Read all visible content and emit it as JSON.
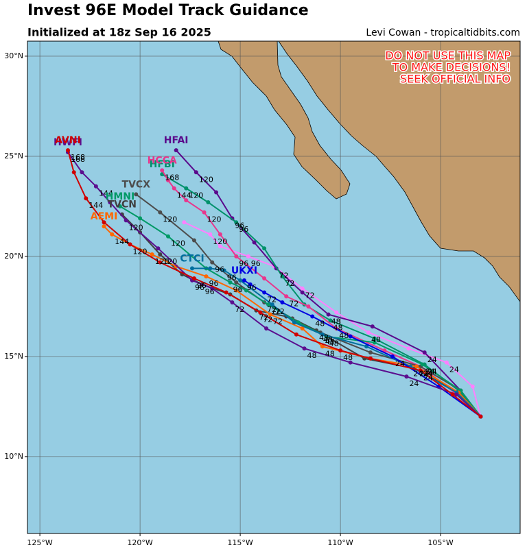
{
  "chart_data": {
    "type": "track-map",
    "title": "Invest 96E Model Track Guidance",
    "subtitle": "Initialized at 18z Sep 16 2025",
    "credit": "Levi Cowan - tropicaltidbits.com",
    "warning": [
      "DO NOT USE THIS MAP",
      "TO MAKE DECISIONS!",
      "SEEK OFFICIAL INFO"
    ],
    "xlim": [
      -125.62,
      -101.03
    ],
    "ylim": [
      6.16,
      30.75
    ],
    "xticks": [
      {
        "value": -125,
        "label": "125°W"
      },
      {
        "value": -120,
        "label": "120°W"
      },
      {
        "value": -115,
        "label": "115°W"
      },
      {
        "value": -110,
        "label": "110°W"
      },
      {
        "value": -105,
        "label": "105°W"
      }
    ],
    "yticks": [
      {
        "value": 10,
        "label": "10°N"
      },
      {
        "value": 15,
        "label": "15°N"
      },
      {
        "value": 20,
        "label": "20°N"
      },
      {
        "value": 25,
        "label": "25°N"
      },
      {
        "value": 30,
        "label": "30°N"
      }
    ],
    "grid": true,
    "series": [
      {
        "color": "#ff80ff",
        "lon": [
          -103.0,
          -103.4,
          -104.7,
          -106.6,
          -108.6,
          -110.2,
          -111.9,
          -113.3,
          -114.6,
          -116.0,
          -116.5,
          -117.8
        ],
        "lat": [
          12.0,
          13.5,
          14.7,
          15.4,
          16.2,
          17.2,
          18.4,
          19.5,
          20.0,
          20.5,
          21.1,
          21.7
        ],
        "hours": [
          null,
          null,
          24,
          null,
          48,
          null,
          72,
          null,
          96,
          null,
          120,
          null
        ]
      },
      {
        "name": "HFAI",
        "color": "#5a0a8c",
        "lon": [
          -103.0,
          -104.0,
          -105.8,
          -108.4,
          -110.6,
          -111.9,
          -113.2,
          -114.3,
          -115.4,
          -116.2,
          -117.2,
          -118.2
        ],
        "lat": [
          12.0,
          13.3,
          15.2,
          16.5,
          17.1,
          18.2,
          19.4,
          20.7,
          21.9,
          23.2,
          24.2,
          25.3
        ],
        "hours": [
          null,
          null,
          24,
          null,
          48,
          null,
          72,
          null,
          96,
          null,
          120,
          null
        ]
      },
      {
        "name": "HFBI",
        "color": "#00916b",
        "lon": [
          -103.0,
          -104.1,
          -105.8,
          -108.3,
          -110.5,
          -111.8,
          -112.9,
          -113.8,
          -115.2,
          -116.6,
          -117.7,
          -118.9
        ],
        "lat": [
          12.0,
          13.3,
          14.6,
          15.9,
          16.8,
          17.6,
          19.0,
          20.4,
          21.7,
          22.7,
          23.4,
          24.1
        ],
        "hours": [
          null,
          null,
          24,
          null,
          48,
          null,
          72,
          null,
          96,
          null,
          120,
          null
        ]
      },
      {
        "name": "HCCA",
        "color": "#e8368c",
        "lon": [
          -103.0,
          -104.3,
          -106.0,
          -107.8,
          -110.2,
          -111.6,
          -112.7,
          -113.8,
          -115.2,
          -116.0,
          -116.8,
          -117.7,
          -118.3,
          -118.6,
          -118.9
        ],
        "lat": [
          12.0,
          13.2,
          14.5,
          15.3,
          16.4,
          17.5,
          18.0,
          18.9,
          20.0,
          21.1,
          22.2,
          22.8,
          23.4,
          23.8,
          24.3
        ],
        "hours": [
          null,
          null,
          24,
          null,
          48,
          null,
          72,
          null,
          96,
          null,
          120,
          null,
          144,
          null,
          168
        ]
      },
      {
        "name": "TVCX",
        "color": "#4d4d4d",
        "lon": [
          -103.0,
          -104.0,
          -106.0,
          -108.5,
          -111.0,
          -112.4,
          -113.8,
          -115.2,
          -116.4,
          -117.3,
          -119.0,
          -120.2
        ],
        "lat": [
          12.0,
          13.3,
          14.5,
          15.2,
          16.2,
          16.9,
          17.7,
          18.7,
          19.7,
          20.8,
          22.2,
          23.1
        ],
        "hours": [
          null,
          null,
          24,
          null,
          48,
          null,
          72,
          null,
          96,
          null,
          120,
          null
        ]
      },
      {
        "name": "TVCN",
        "color": "#404040",
        "lon": [
          -103.0,
          -104.1,
          -106.3,
          -108.8,
          -111.2,
          -112.7,
          -114.2,
          -115.5,
          -116.9,
          -117.9,
          -119.0,
          -120.0,
          -120.9
        ],
        "lat": [
          12.0,
          13.2,
          14.4,
          14.9,
          16.3,
          17.0,
          17.3,
          18.1,
          18.6,
          19.1,
          20.1,
          21.2,
          22.1
        ],
        "hours": [
          null,
          null,
          null,
          null,
          48,
          null,
          72,
          null,
          96,
          null,
          120,
          null,
          null
        ]
      },
      {
        "name": "HMNI",
        "color": "#009966",
        "lon": [
          -103.0,
          -104.0,
          -105.9,
          -108.3,
          -110.7,
          -112.1,
          -113.6,
          -114.7,
          -115.5,
          -116.7,
          -118.6,
          -120.0,
          -121.0
        ],
        "lat": [
          12.0,
          13.3,
          14.6,
          15.7,
          16.0,
          16.7,
          17.6,
          18.3,
          18.7,
          19.4,
          21.0,
          21.9,
          22.5
        ],
        "hours": [
          null,
          null,
          24,
          null,
          48,
          null,
          72,
          null,
          96,
          null,
          120,
          null,
          null
        ]
      },
      {
        "name": "AEMI",
        "color": "#ff6600",
        "lon": [
          -103.0,
          -104.1,
          -106.2,
          -108.5,
          -110.9,
          -111.9,
          -113.5,
          -115.2,
          -116.7,
          -118.2,
          -119.4,
          -120.5,
          -121.4,
          -121.8
        ],
        "lat": [
          12.0,
          13.2,
          14.5,
          14.9,
          15.5,
          16.4,
          17.1,
          18.3,
          19.0,
          19.5,
          20.1,
          20.6,
          21.1,
          21.5
        ],
        "hours": [
          null,
          null,
          24,
          null,
          48,
          null,
          72,
          null,
          96,
          null,
          120,
          null,
          144,
          null
        ]
      },
      {
        "name": "CTCI",
        "color": "#006e9e",
        "lon": [
          -103.0,
          -104.2,
          -106.5,
          -108.7,
          -110.9,
          -112.3,
          -113.4,
          -115.0,
          -115.8,
          -116.5,
          -117.4
        ],
        "lat": [
          12.0,
          13.2,
          14.5,
          15.5,
          16.1,
          16.7,
          17.6,
          18.8,
          19.3,
          19.4,
          19.4
        ],
        "hours": [
          null,
          null,
          24,
          null,
          48,
          null,
          72,
          null,
          96,
          null,
          null
        ]
      },
      {
        "name": "UKXI",
        "color": "#0000e0",
        "lon": [
          -103.0,
          -105.1,
          -107.4,
          -109.5,
          -111.4,
          -112.9,
          -113.8,
          -114.5,
          -114.8
        ],
        "lat": [
          12.0,
          13.5,
          15.0,
          16.0,
          17.0,
          17.7,
          18.2,
          18.6,
          18.8
        ],
        "hours": [
          null,
          null,
          24,
          null,
          48,
          null,
          72,
          null,
          96
        ]
      },
      {
        "name": "HWFI",
        "color": "#5b0f8f",
        "lon": [
          -103.0,
          -104.2,
          -106.7,
          -109.5,
          -111.8,
          -113.7,
          -115.4,
          -116.4,
          -117.4,
          -119.1,
          -120.7,
          -121.5,
          -122.2,
          -122.9,
          -123.6
        ],
        "lat": [
          12.0,
          13.1,
          14.0,
          14.7,
          15.4,
          16.4,
          17.7,
          18.4,
          18.8,
          20.4,
          21.8,
          22.7,
          23.5,
          24.2,
          25.2
        ],
        "hours": [
          null,
          null,
          24,
          null,
          48,
          null,
          72,
          null,
          96,
          null,
          120,
          null,
          144,
          null,
          168
        ]
      },
      {
        "name": "AVNI",
        "color": "#d00000",
        "lon": [
          -103.0,
          -104.4,
          -106.0,
          -108.5,
          -110.0,
          -112.2,
          -114.0,
          -115.7,
          -117.3,
          -119.0,
          -120.5,
          -121.8,
          -122.7,
          -123.3,
          -123.6
        ],
        "lat": [
          12.0,
          13.1,
          14.3,
          14.9,
          15.3,
          16.1,
          17.2,
          18.2,
          18.9,
          19.7,
          20.6,
          21.7,
          22.9,
          24.2,
          25.3
        ],
        "hours": [
          null,
          null,
          24,
          null,
          48,
          null,
          72,
          null,
          96,
          null,
          120,
          null,
          144,
          null,
          168
        ]
      }
    ]
  }
}
